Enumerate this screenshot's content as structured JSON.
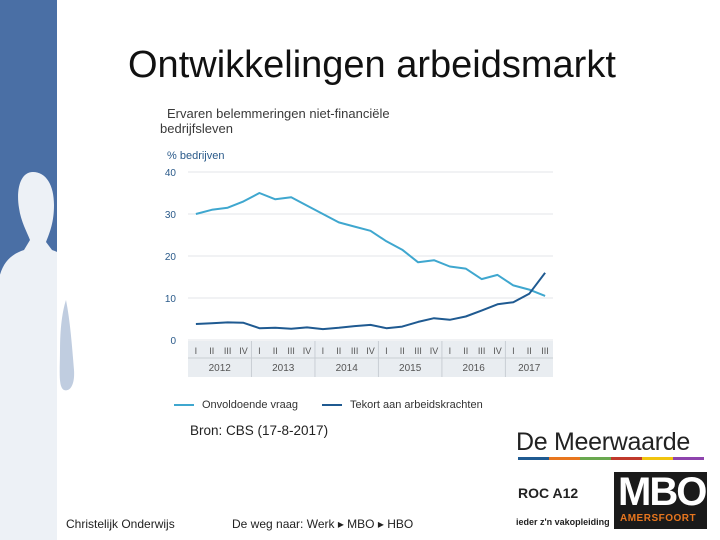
{
  "slide": {
    "title": "Ontwikkelingen arbeidsmarkt",
    "source": "Bron: CBS (17-8-2017)"
  },
  "colors": {
    "sidebar": "#4a6fa5",
    "series_vraag": "#3fa7cf",
    "series_tekort": "#1f5a91",
    "axis_band": "#e9edf1"
  },
  "footer": {
    "left": "Christelijk Onderwijs",
    "middle": "De weg naar: Werk ▸ MBO ▸ HBO"
  },
  "logos": {
    "meerwaarde": "De Meerwaarde",
    "roc": "ROC A12",
    "roc_tagline": "ieder z'n vakopleiding",
    "mbo": "MBO",
    "mbo_sub": "AMERSFOORT"
  },
  "chart_data": {
    "type": "line",
    "title_line1": "Ervaren belemmeringen niet-financiële",
    "title_line2": "bedrijfsleven",
    "ylabel": "% bedrijven",
    "ylim": [
      0,
      40
    ],
    "yticks": [
      0,
      10,
      20,
      30,
      40
    ],
    "ytick_labels": [
      "0",
      "10",
      "20",
      "30",
      "40"
    ],
    "quarters": [
      "I",
      "II",
      "III",
      "IV",
      "I",
      "II",
      "III",
      "IV",
      "I",
      "II",
      "III",
      "IV",
      "I",
      "II",
      "III",
      "IV",
      "I",
      "II",
      "III",
      "IV",
      "I",
      "II",
      "III"
    ],
    "years": [
      "2012",
      "2013",
      "2014",
      "2015",
      "2016",
      "2017"
    ],
    "year_quarter_counts": [
      4,
      4,
      4,
      4,
      4,
      3
    ],
    "grid": true,
    "legend_position": "bottom",
    "series": [
      {
        "name": "Onvoldoende vraag",
        "color": "#3fa7cf",
        "values": [
          30,
          31,
          31.5,
          33,
          35,
          33.5,
          34,
          32,
          30,
          28,
          27,
          26,
          23.5,
          21.5,
          18.5,
          19,
          17.5,
          17,
          14.5,
          15.5,
          13,
          12,
          10.5
        ]
      },
      {
        "name": "Tekort aan arbeidskrachten",
        "color": "#1f5a91",
        "values": [
          3.8,
          4,
          4.2,
          4.1,
          2.8,
          2.9,
          2.7,
          3,
          2.6,
          2.9,
          3.3,
          3.6,
          2.8,
          3.2,
          4.3,
          5.2,
          4.8,
          5.6,
          7,
          8.5,
          9,
          11,
          16
        ]
      }
    ]
  }
}
